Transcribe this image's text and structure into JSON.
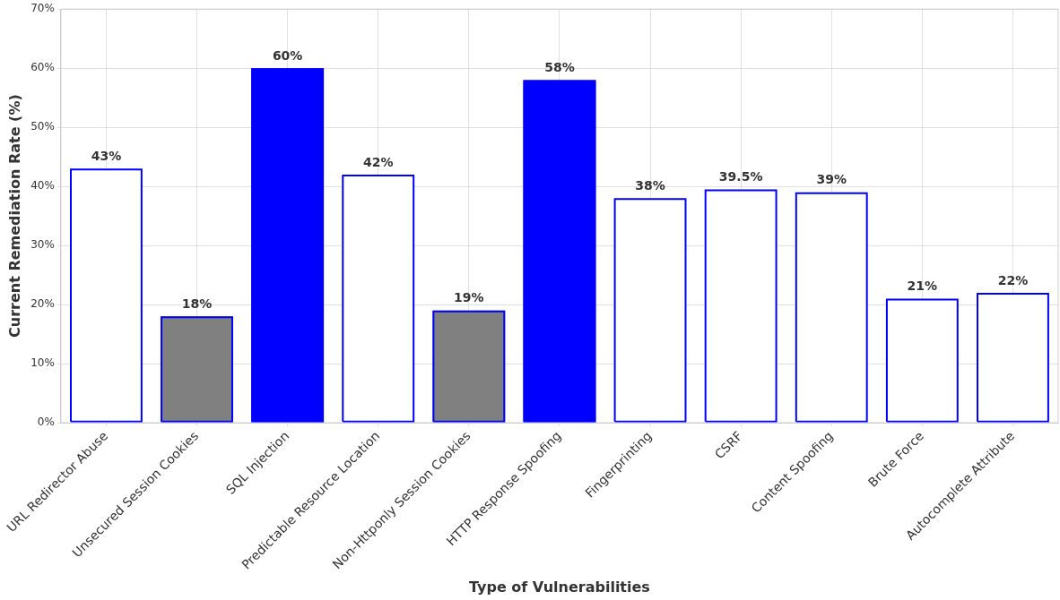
{
  "chart_data": {
    "type": "bar",
    "xlabel": "Type of Vulnerabilities",
    "ylabel": "Current Remediation Rate (%)",
    "categories": [
      "URL Redirector Abuse",
      "Unsecured Session Cookies",
      "SQL Injection",
      "Predictable Resource Location",
      "Non-Httponly Session Cookies",
      "HTTP Response Spoofing",
      "Fingerprinting",
      "CSRF",
      "Content Spoofing",
      "Brute Force",
      "Autocomplete Attribute"
    ],
    "values": [
      43,
      18,
      60,
      42,
      19,
      58,
      38,
      39.5,
      39,
      21,
      22
    ],
    "color": "#0000ff",
    "colors": [
      "#ffffff",
      "#808080",
      "#0000ff",
      "#ffffff",
      "#808080",
      "#0000ff",
      "#ffffff",
      "#ffffff",
      "#ffffff",
      "#ffffff",
      "#ffffff"
    ],
    "value_labels": [
      "43%",
      "18%",
      "60%",
      "42%",
      "19%",
      "58%",
      "38%",
      "39.5%",
      "39%",
      "21%",
      "22%"
    ],
    "ylim": [
      0,
      70
    ],
    "yticks": [
      {
        "value": 0,
        "label": "0%"
      },
      {
        "value": 10,
        "label": "10%"
      },
      {
        "value": 20,
        "label": "20%"
      },
      {
        "value": 30,
        "label": "30%"
      },
      {
        "value": 40,
        "label": "40%"
      },
      {
        "value": 50,
        "label": "50%"
      },
      {
        "value": 60,
        "label": "60%"
      },
      {
        "value": 70,
        "label": "70%"
      }
    ],
    "grid": true,
    "legend": false
  }
}
